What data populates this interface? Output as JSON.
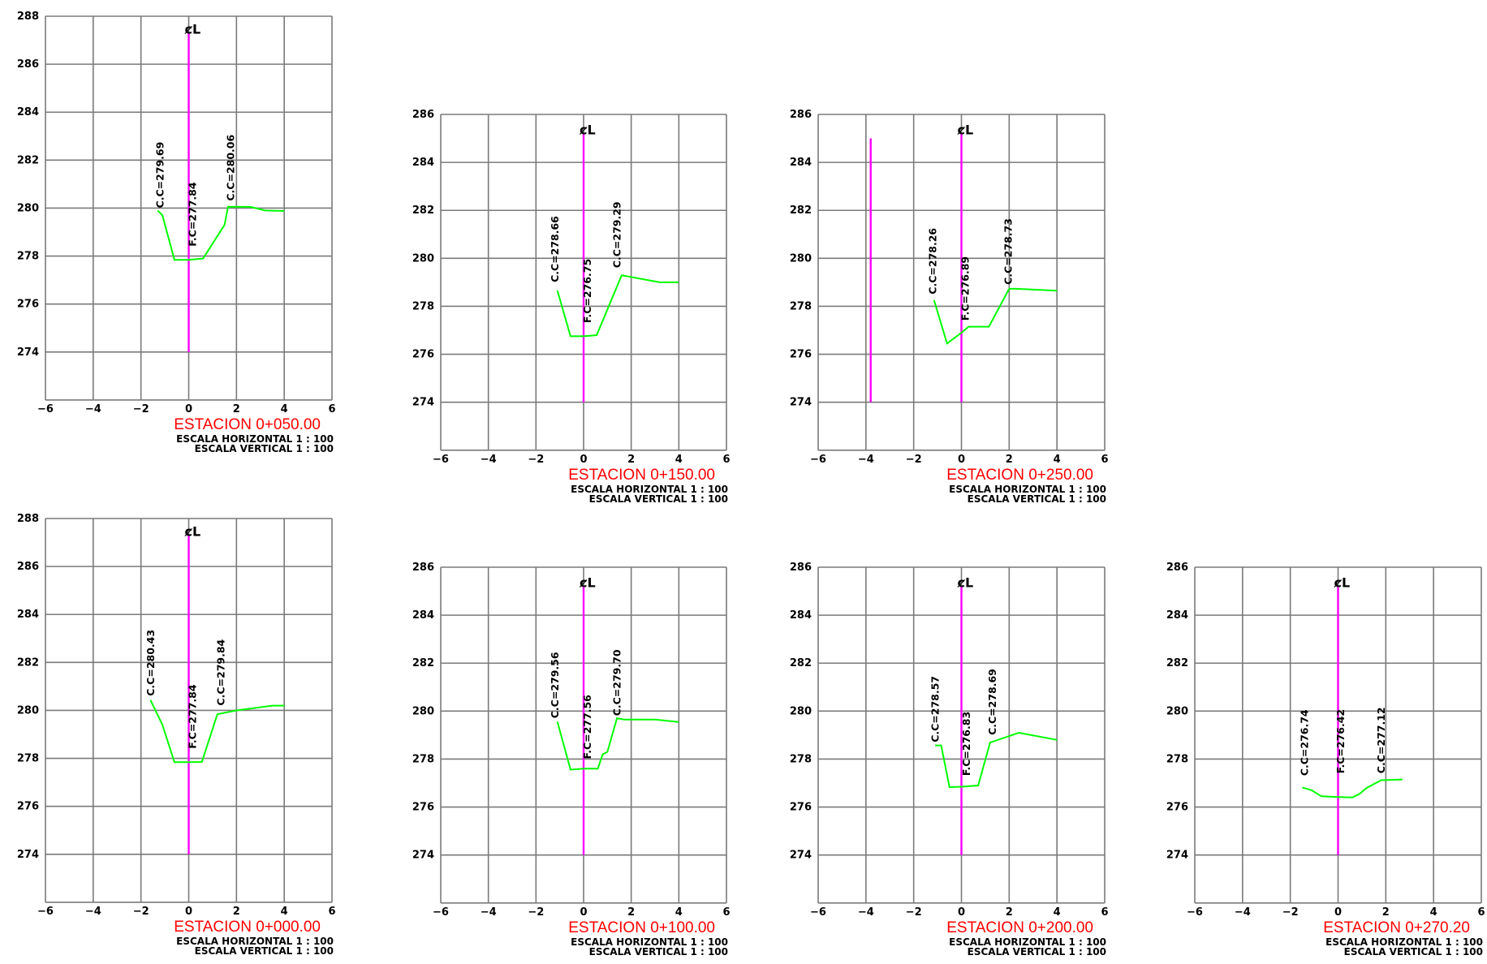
{
  "chart_data": [
    {
      "type": "line",
      "title": "ESTACION 0+050.00",
      "scale_h": "ESCALA HORIZONTAL 1 : 100",
      "scale_v": "ESCALA VERTICAL 1 : 100",
      "centerline_symbol": "ȼL",
      "xlim": [
        -6,
        6
      ],
      "ylim": [
        272,
        288
      ],
      "xticks": [
        -6,
        -4,
        -2,
        0,
        2,
        4,
        6
      ],
      "yticks": [
        274,
        276,
        278,
        280,
        282,
        284,
        286,
        288
      ],
      "series": [
        {
          "x": [
            -1.3,
            -1.1,
            -0.6,
            0.0,
            0.6,
            1.5,
            1.65,
            2.6,
            3.2,
            4.0
          ],
          "y": [
            279.9,
            279.7,
            277.84,
            277.84,
            277.9,
            279.3,
            280.06,
            280.05,
            279.9,
            279.88
          ]
        }
      ],
      "centerline": {
        "x": 0,
        "y_from": 274,
        "y_to": 287.3
      },
      "extra_lines": [],
      "annotations": [
        {
          "label": "C.C=279.69",
          "x": -1.05,
          "y": 280.0
        },
        {
          "label": "F.C=277.84",
          "x": 0.3,
          "y": 278.4
        },
        {
          "label": "C.C=280.06",
          "x": 1.9,
          "y": 280.3
        }
      ]
    },
    {
      "type": "line",
      "title": "ESTACION 0+150.00",
      "scale_h": "ESCALA HORIZONTAL 1 : 100",
      "scale_v": "ESCALA VERTICAL 1 : 100",
      "centerline_symbol": "ȼL",
      "xlim": [
        -6,
        6
      ],
      "ylim": [
        272,
        286
      ],
      "xticks": [
        -6,
        -4,
        -2,
        0,
        2,
        4,
        6
      ],
      "yticks": [
        274,
        276,
        278,
        280,
        282,
        284,
        286
      ],
      "series": [
        {
          "x": [
            -1.1,
            -0.55,
            0.0,
            0.55,
            1.6,
            3.2,
            4.0
          ],
          "y": [
            278.66,
            276.75,
            276.75,
            276.8,
            279.29,
            279.0,
            279.0
          ]
        }
      ],
      "centerline": {
        "x": 0,
        "y_from": 274,
        "y_to": 285.2
      },
      "extra_lines": [],
      "annotations": [
        {
          "label": "C.C=278.66",
          "x": -1.05,
          "y": 279.0
        },
        {
          "label": "F.C=276.75",
          "x": 0.3,
          "y": 277.3
        },
        {
          "label": "C.C=279.29",
          "x": 1.55,
          "y": 279.6
        }
      ]
    },
    {
      "type": "line",
      "title": "ESTACION 0+250.00",
      "scale_h": "ESCALA HORIZONTAL 1 : 100",
      "scale_v": "ESCALA VERTICAL 1 : 100",
      "centerline_symbol": "ȼL",
      "xlim": [
        -6,
        6
      ],
      "ylim": [
        272,
        286
      ],
      "xticks": [
        -6,
        -4,
        -2,
        0,
        2,
        4,
        6
      ],
      "yticks": [
        274,
        276,
        278,
        280,
        282,
        284,
        286
      ],
      "series": [
        {
          "x": [
            -1.15,
            -0.6,
            0.0,
            0.3,
            1.15,
            2.0,
            2.3,
            4.0
          ],
          "y": [
            278.26,
            276.45,
            276.9,
            277.15,
            277.15,
            278.73,
            278.73,
            278.65
          ]
        }
      ],
      "centerline": {
        "x": 0,
        "y_from": 274,
        "y_to": 285.2
      },
      "extra_lines": [
        {
          "x": -3.8,
          "y_from": 274,
          "y_to": 285
        }
      ],
      "annotations": [
        {
          "label": "C.C=278.26",
          "x": -1.05,
          "y": 278.5
        },
        {
          "label": "F.C=276.89",
          "x": 0.3,
          "y": 277.4
        },
        {
          "label": "C.C=278.73",
          "x": 2.1,
          "y": 278.9
        }
      ]
    },
    {
      "type": "line",
      "title": "ESTACION 0+000.00",
      "scale_h": "ESCALA HORIZONTAL 1 : 100",
      "scale_v": "ESCALA VERTICAL 1 : 100",
      "centerline_symbol": "ȼL",
      "xlim": [
        -6,
        6
      ],
      "ylim": [
        272,
        288
      ],
      "xticks": [
        -6,
        -4,
        -2,
        0,
        2,
        4,
        6
      ],
      "yticks": [
        274,
        276,
        278,
        280,
        282,
        284,
        286,
        288
      ],
      "series": [
        {
          "x": [
            -1.6,
            -1.1,
            -0.6,
            0.0,
            0.55,
            1.2,
            2.0,
            3.5,
            4.0
          ],
          "y": [
            280.43,
            279.4,
            277.84,
            277.84,
            277.85,
            279.84,
            280.0,
            280.2,
            280.2
          ]
        }
      ],
      "centerline": {
        "x": 0,
        "y_from": 274,
        "y_to": 287.3
      },
      "extra_lines": [],
      "annotations": [
        {
          "label": "C.C=280.43",
          "x": -1.45,
          "y": 280.6
        },
        {
          "label": "F.C=277.84",
          "x": 0.3,
          "y": 278.4
        },
        {
          "label": "C.C=279.84",
          "x": 1.5,
          "y": 280.2
        }
      ]
    },
    {
      "type": "line",
      "title": "ESTACION 0+100.00",
      "scale_h": "ESCALA HORIZONTAL 1 : 100",
      "scale_v": "ESCALA VERTICAL 1 : 100",
      "centerline_symbol": "ȼL",
      "xlim": [
        -6,
        6
      ],
      "ylim": [
        272,
        286
      ],
      "xticks": [
        -6,
        -4,
        -2,
        0,
        2,
        4,
        6
      ],
      "yticks": [
        274,
        276,
        278,
        280,
        282,
        284,
        286
      ],
      "series": [
        {
          "x": [
            -1.1,
            -0.55,
            0.0,
            0.6,
            0.8,
            1.0,
            1.4,
            1.7,
            3.0,
            4.0
          ],
          "y": [
            279.56,
            277.56,
            277.6,
            277.6,
            278.2,
            278.3,
            279.7,
            279.65,
            279.65,
            279.55
          ]
        }
      ],
      "centerline": {
        "x": 0,
        "y_from": 274,
        "y_to": 285.2
      },
      "extra_lines": [],
      "annotations": [
        {
          "label": "C.C=279.56",
          "x": -1.05,
          "y": 279.7
        },
        {
          "label": "F.C=277.56",
          "x": 0.3,
          "y": 278.0
        },
        {
          "label": "C.C=279.70",
          "x": 1.55,
          "y": 279.8
        }
      ]
    },
    {
      "type": "line",
      "title": "ESTACION 0+200.00",
      "scale_h": "ESCALA HORIZONTAL 1 : 100",
      "scale_v": "ESCALA VERTICAL 1 : 100",
      "centerline_symbol": "ȼL",
      "xlim": [
        -6,
        6
      ],
      "ylim": [
        272,
        286
      ],
      "xticks": [
        -6,
        -4,
        -2,
        0,
        2,
        4,
        6
      ],
      "yticks": [
        274,
        276,
        278,
        280,
        282,
        284,
        286
      ],
      "series": [
        {
          "x": [
            -1.1,
            -0.85,
            -0.5,
            0.0,
            0.7,
            1.2,
            2.4,
            4.0
          ],
          "y": [
            278.57,
            278.57,
            276.83,
            276.85,
            276.9,
            278.69,
            279.1,
            278.8
          ]
        }
      ],
      "centerline": {
        "x": 0,
        "y_from": 274,
        "y_to": 285.2
      },
      "extra_lines": [],
      "annotations": [
        {
          "label": "C.C=278.57",
          "x": -0.95,
          "y": 278.7
        },
        {
          "label": "F.C=276.83",
          "x": 0.35,
          "y": 277.3
        },
        {
          "label": "C.C=278.69",
          "x": 1.45,
          "y": 279.0
        }
      ]
    },
    {
      "type": "line",
      "title": "ESTACION 0+270.20",
      "scale_h": "ESCALA HORIZONTAL 1 : 100",
      "scale_v": "ESCALA VERTICAL 1 : 100",
      "centerline_symbol": "ȼL",
      "xlim": [
        -6,
        6
      ],
      "ylim": [
        272,
        286
      ],
      "xticks": [
        -6,
        -4,
        -2,
        0,
        2,
        4,
        6
      ],
      "yticks": [
        274,
        276,
        278,
        280,
        282,
        284,
        286
      ],
      "series": [
        {
          "x": [
            -1.5,
            -1.1,
            -0.7,
            0.0,
            0.6,
            0.9,
            1.2,
            1.8,
            2.7
          ],
          "y": [
            276.82,
            276.7,
            276.45,
            276.42,
            276.4,
            276.55,
            276.8,
            277.12,
            277.15
          ]
        }
      ],
      "centerline": {
        "x": 0,
        "y_from": 274,
        "y_to": 285.2
      },
      "extra_lines": [],
      "annotations": [
        {
          "label": "C.C=276.74",
          "x": -1.25,
          "y": 277.3
        },
        {
          "label": "F.C=276.42",
          "x": 0.25,
          "y": 277.4
        },
        {
          "label": "C.C=277.12",
          "x": 1.95,
          "y": 277.4
        }
      ]
    }
  ],
  "colors": {
    "grid": "#7a7a7a",
    "profile": "#00ff00",
    "centerline": "#ff00ff",
    "title": "#ff0000"
  }
}
